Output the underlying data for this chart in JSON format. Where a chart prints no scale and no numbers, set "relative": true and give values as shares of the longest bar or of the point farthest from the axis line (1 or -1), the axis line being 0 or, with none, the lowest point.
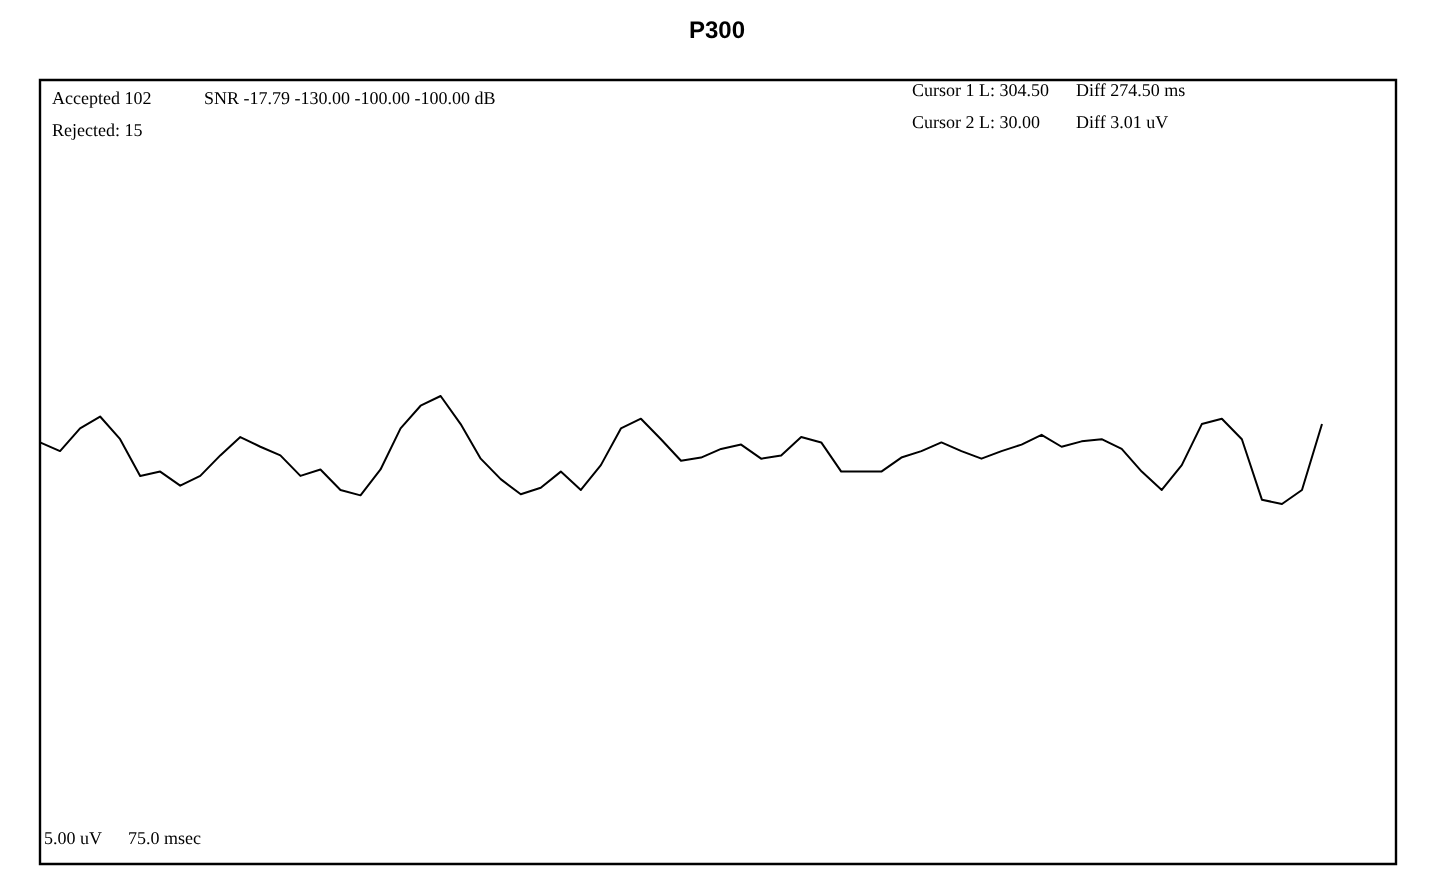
{
  "chart_data": {
    "type": "line",
    "title": "P300",
    "relative": true,
    "color": "#000000",
    "legend": false,
    "marker": "none",
    "categories": [
      null,
      null,
      null,
      null,
      null,
      null,
      null,
      null,
      null,
      null,
      null,
      null,
      null,
      null,
      null,
      null,
      null,
      null,
      null,
      null,
      null,
      null,
      null,
      null,
      null,
      null,
      null,
      null,
      null,
      null,
      null,
      null,
      null,
      null,
      null,
      null,
      null,
      null,
      null,
      null,
      null,
      null,
      null,
      null,
      null,
      null,
      null,
      null,
      null,
      null,
      null,
      null,
      null,
      null,
      null,
      null,
      null,
      null,
      null,
      null,
      null,
      null,
      null,
      null,
      null
    ],
    "values": [
      0.57,
      0.49,
      0.7,
      0.81,
      0.6,
      0.26,
      0.3,
      0.17,
      0.26,
      0.45,
      0.62,
      0.53,
      0.45,
      0.26,
      0.32,
      0.13,
      0.08,
      0.32,
      0.7,
      0.91,
      1,
      0.74,
      0.42,
      0.23,
      0.09,
      0.15,
      0.3,
      0.13,
      0.36,
      0.7,
      0.79,
      0.6,
      0.4,
      0.43,
      0.51,
      0.55,
      0.42,
      0.45,
      0.62,
      0.57,
      0.3,
      0.3,
      0.3,
      0.43,
      0.49,
      0.57,
      0.49,
      0.42,
      0.49,
      0.55,
      0.64,
      0.53,
      0.58,
      0.6,
      0.51,
      0.3,
      0.13,
      0.36,
      0.74,
      0.79,
      0.6,
      0.04,
      0,
      0.13,
      0.74
    ],
    "annotations": [
      "Accepted 102",
      "Rejected: 15",
      "SNR -17.79 -130.00 -100.00 -100.00 dB",
      "Cursor 1 L: 304.50",
      "Diff 274.50 ms",
      "Cursor 2 L: 30.00",
      "Diff 3.01 uV",
      "5.00 uV",
      "75.0 msec"
    ]
  }
}
